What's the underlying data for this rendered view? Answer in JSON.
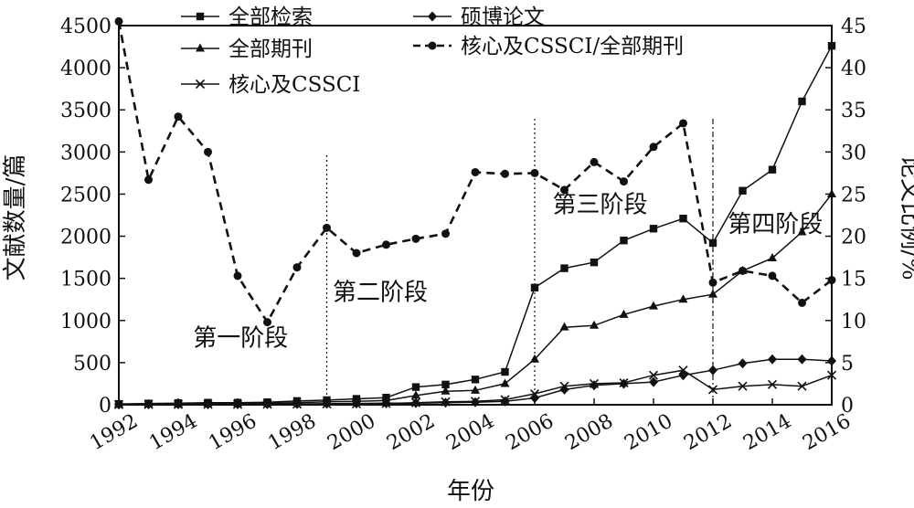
{
  "chart_data": {
    "type": "line",
    "xlabel": "年份",
    "ylabel_left": "文献数量/篇",
    "ylabel_right": "论文比例/%",
    "x": [
      1992,
      1993,
      1994,
      1995,
      1996,
      1997,
      1998,
      1999,
      2000,
      2001,
      2002,
      2003,
      2004,
      2005,
      2006,
      2007,
      2008,
      2009,
      2010,
      2011,
      2012,
      2013,
      2014,
      2015,
      2016
    ],
    "x_ticks": [
      1992,
      1994,
      1996,
      1998,
      2000,
      2002,
      2004,
      2006,
      2008,
      2010,
      2012,
      2014,
      2016
    ],
    "xlim": [
      1992,
      2016
    ],
    "ylim_left": [
      0,
      4500
    ],
    "yticks_left": [
      0,
      500,
      1000,
      1500,
      2000,
      2500,
      3000,
      3500,
      4000,
      4500
    ],
    "ylim_right": [
      0,
      45
    ],
    "yticks_right": [
      0,
      5,
      10,
      15,
      20,
      25,
      30,
      35,
      40,
      45
    ],
    "grid": false,
    "legend_position": "top",
    "series": [
      {
        "name": "全部检索",
        "axis": "left",
        "marker": "square",
        "dash": "solid",
        "values": [
          10,
          15,
          20,
          25,
          25,
          30,
          45,
          55,
          70,
          85,
          210,
          240,
          300,
          390,
          1390,
          1620,
          1690,
          1950,
          2090,
          2210,
          1920,
          2540,
          2790,
          3600,
          4260
        ]
      },
      {
        "name": "全部期刊",
        "axis": "left",
        "marker": "triangle",
        "dash": "solid",
        "values": [
          5,
          8,
          10,
          15,
          15,
          20,
          25,
          35,
          40,
          50,
          110,
          160,
          170,
          250,
          540,
          920,
          940,
          1070,
          1170,
          1250,
          1310,
          1590,
          1740,
          2050,
          2500
        ]
      },
      {
        "name": "核心及CSSCI",
        "axis": "left",
        "marker": "x",
        "dash": "solid",
        "values": [
          2,
          3,
          4,
          5,
          5,
          6,
          8,
          10,
          12,
          15,
          25,
          35,
          40,
          60,
          130,
          220,
          250,
          260,
          350,
          410,
          180,
          220,
          240,
          220,
          350
        ]
      },
      {
        "name": "硕博论文",
        "axis": "left",
        "marker": "diamond",
        "dash": "solid",
        "values": [
          3,
          4,
          5,
          6,
          6,
          8,
          10,
          12,
          15,
          18,
          20,
          25,
          30,
          40,
          80,
          180,
          230,
          250,
          270,
          350,
          410,
          490,
          540,
          540,
          520
        ]
      },
      {
        "name": "核心及CSSCI/全部期刊",
        "axis": "right",
        "marker": "circle",
        "dash": "dashed",
        "values": [
          45.5,
          26.7,
          34.2,
          30.0,
          15.3,
          9.8,
          16.3,
          21.0,
          18.0,
          19.0,
          19.7,
          20.3,
          27.6,
          27.4,
          27.5,
          25.5,
          28.8,
          26.5,
          30.6,
          33.4,
          14.5,
          15.9,
          15.3,
          12.1,
          14.8
        ]
      }
    ],
    "stage_dividers": [
      1999,
      2006,
      2012
    ],
    "stage_labels": [
      {
        "text": "第一阶段",
        "year": 1996.1,
        "value_left": 700
      },
      {
        "text": "第二阶段",
        "year": 2000.8,
        "value_left": 1240
      },
      {
        "text": "第三阶段",
        "year": 2008.2,
        "value_left": 2280
      },
      {
        "text": "第四阶段",
        "year": 2014.1,
        "value_left": 2050
      }
    ]
  }
}
